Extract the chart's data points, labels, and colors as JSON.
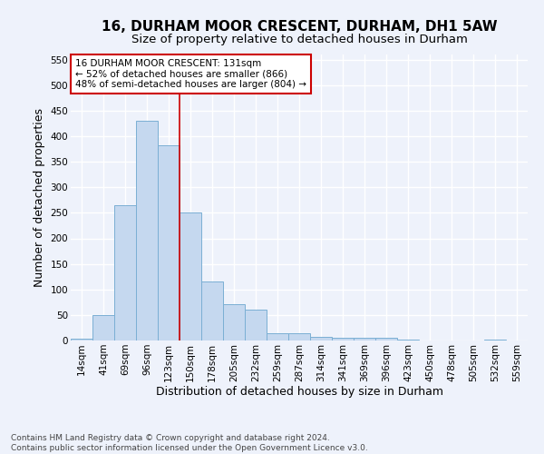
{
  "title1": "16, DURHAM MOOR CRESCENT, DURHAM, DH1 5AW",
  "title2": "Size of property relative to detached houses in Durham",
  "xlabel": "Distribution of detached houses by size in Durham",
  "ylabel": "Number of detached properties",
  "categories": [
    "14sqm",
    "41sqm",
    "69sqm",
    "96sqm",
    "123sqm",
    "150sqm",
    "178sqm",
    "205sqm",
    "232sqm",
    "259sqm",
    "287sqm",
    "314sqm",
    "341sqm",
    "369sqm",
    "396sqm",
    "423sqm",
    "450sqm",
    "478sqm",
    "505sqm",
    "532sqm",
    "559sqm"
  ],
  "values": [
    3,
    50,
    265,
    430,
    383,
    250,
    115,
    71,
    60,
    14,
    15,
    7,
    5,
    6,
    5,
    1,
    0,
    0,
    0,
    2,
    0
  ],
  "bar_color": "#c5d8ef",
  "bar_edge_color": "#7bafd4",
  "vline_x": 4.5,
  "vline_color": "#cc0000",
  "annotation_text": "16 DURHAM MOOR CRESCENT: 131sqm\n← 52% of detached houses are smaller (866)\n48% of semi-detached houses are larger (804) →",
  "annotation_box_color": "#ffffff",
  "annotation_box_edge": "#cc0000",
  "ylim": [
    0,
    560
  ],
  "yticks": [
    0,
    50,
    100,
    150,
    200,
    250,
    300,
    350,
    400,
    450,
    500,
    550
  ],
  "footnote": "Contains HM Land Registry data © Crown copyright and database right 2024.\nContains public sector information licensed under the Open Government Licence v3.0.",
  "background_color": "#eef2fb",
  "grid_color": "#ffffff",
  "title_fontsize": 11,
  "subtitle_fontsize": 9.5,
  "label_fontsize": 9,
  "tick_fontsize": 7.5,
  "footnote_fontsize": 6.5,
  "annot_fontsize": 7.5
}
